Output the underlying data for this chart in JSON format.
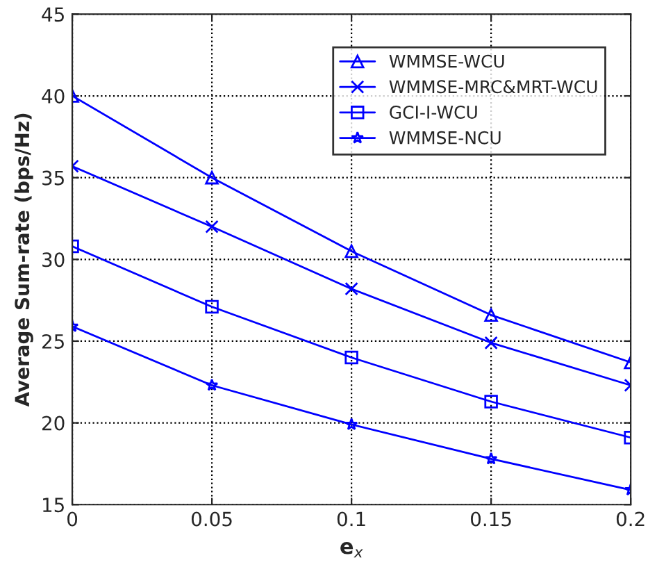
{
  "chart_data": {
    "type": "line",
    "xlabel": "e$_{x}$",
    "ylabel": "Average Sum-rate (bps/Hz)",
    "x": [
      0,
      0.05,
      0.1,
      0.15,
      0.2
    ],
    "series": [
      {
        "name": "WMMSE-WCU",
        "color": "#0000ff",
        "marker": "triangle",
        "values": [
          40.0,
          35.0,
          30.5,
          26.6,
          23.7
        ]
      },
      {
        "name": "WMMSE-MRC&MRT-WCU",
        "color": "#0000ff",
        "marker": "cross",
        "values": [
          35.7,
          32.0,
          28.2,
          24.9,
          22.3
        ]
      },
      {
        "name": "GCI-I-WCU",
        "color": "#0000ff",
        "marker": "square",
        "values": [
          30.8,
          27.1,
          24.0,
          21.3,
          19.1
        ]
      },
      {
        "name": "WMMSE-NCU",
        "color": "#0000ff",
        "marker": "star",
        "values": [
          25.9,
          22.3,
          19.9,
          17.8,
          15.9
        ]
      }
    ],
    "xlim": [
      0,
      0.2
    ],
    "xticks": [
      0,
      0.05,
      0.1,
      0.15,
      0.2
    ],
    "ylim": [
      15,
      45
    ],
    "yticks": [
      15,
      20,
      25,
      30,
      35,
      40,
      45
    ],
    "grid": true,
    "legend": "top right",
    "line_style": "solid"
  }
}
